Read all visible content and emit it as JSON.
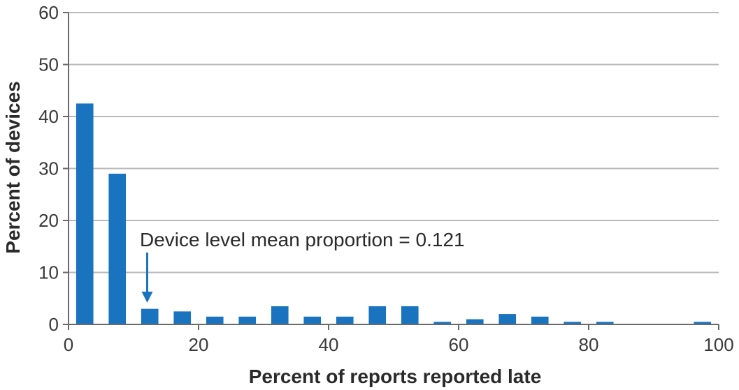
{
  "chart_data": {
    "type": "bar",
    "title": "",
    "xlabel": "Percent of reports reported late",
    "ylabel": "Percent of devices",
    "xlim": [
      0,
      100
    ],
    "ylim": [
      0,
      60
    ],
    "xticks": [
      0,
      20,
      40,
      60,
      80,
      100
    ],
    "yticks": [
      0,
      10,
      20,
      30,
      40,
      50,
      60
    ],
    "grid": "horizontal",
    "bar_color": "#1a73be",
    "bin_width": 5,
    "bins": [
      {
        "x": 2.5,
        "value": 42.5
      },
      {
        "x": 7.5,
        "value": 29
      },
      {
        "x": 12.5,
        "value": 3
      },
      {
        "x": 17.5,
        "value": 2.5
      },
      {
        "x": 22.5,
        "value": 1.5
      },
      {
        "x": 27.5,
        "value": 1.5
      },
      {
        "x": 32.5,
        "value": 3.5
      },
      {
        "x": 37.5,
        "value": 1.5
      },
      {
        "x": 42.5,
        "value": 1.5
      },
      {
        "x": 47.5,
        "value": 3.5
      },
      {
        "x": 52.5,
        "value": 3.5
      },
      {
        "x": 57.5,
        "value": 0.5
      },
      {
        "x": 62.5,
        "value": 1
      },
      {
        "x": 67.5,
        "value": 2
      },
      {
        "x": 72.5,
        "value": 1.5
      },
      {
        "x": 77.5,
        "value": 0.5
      },
      {
        "x": 82.5,
        "value": 0.5
      },
      {
        "x": 87.5,
        "value": 0
      },
      {
        "x": 92.5,
        "value": 0
      },
      {
        "x": 97.5,
        "value": 0.5
      }
    ],
    "annotation": {
      "text": "Device level mean proportion = 0.121",
      "x": 12.1,
      "color": "#1a73be"
    }
  }
}
